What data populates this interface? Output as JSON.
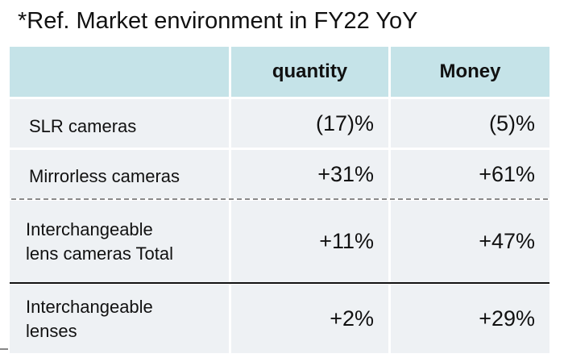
{
  "title": "*Ref. Market environment in FY22 YoY",
  "table": {
    "headers": [
      "",
      "quantity",
      "Money"
    ],
    "rows": [
      {
        "label_lines": [
          "SLR cameras"
        ],
        "quantity": "(17)%",
        "money": "(5)%"
      },
      {
        "label_lines": [
          "Mirrorless cameras"
        ],
        "quantity": "+31%",
        "money": "+61%"
      },
      {
        "label_lines": [
          "Interchangeable",
          "lens cameras Total"
        ],
        "quantity": "+11%",
        "money": "+47%"
      },
      {
        "label_lines": [
          "Interchangeable",
          "lenses"
        ],
        "quantity": "+2%",
        "money": "+29%"
      }
    ]
  },
  "colors": {
    "header_bg": "#c5e3e8",
    "row_bg": "#eef1f4",
    "dashed_divider": "#8a8a8a",
    "solid_divider": "#111111"
  }
}
